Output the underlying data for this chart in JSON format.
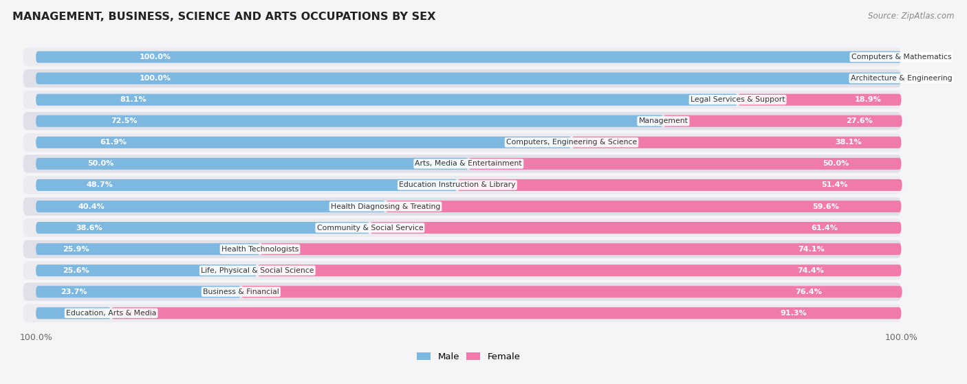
{
  "title": "MANAGEMENT, BUSINESS, SCIENCE AND ARTS OCCUPATIONS BY SEX",
  "source": "Source: ZipAtlas.com",
  "categories": [
    "Computers & Mathematics",
    "Architecture & Engineering",
    "Legal Services & Support",
    "Management",
    "Computers, Engineering & Science",
    "Arts, Media & Entertainment",
    "Education Instruction & Library",
    "Health Diagnosing & Treating",
    "Community & Social Service",
    "Health Technologists",
    "Life, Physical & Social Science",
    "Business & Financial",
    "Education, Arts & Media"
  ],
  "male_pct": [
    100.0,
    100.0,
    81.1,
    72.5,
    61.9,
    50.0,
    48.7,
    40.4,
    38.6,
    25.9,
    25.6,
    23.7,
    8.7
  ],
  "female_pct": [
    0.0,
    0.0,
    18.9,
    27.6,
    38.1,
    50.0,
    51.4,
    59.6,
    61.4,
    74.1,
    74.4,
    76.4,
    91.3
  ],
  "male_color": "#7db8e0",
  "female_color": "#f07baa",
  "row_bg_light": "#ebebf0",
  "row_bg_dark": "#e0e0e8",
  "fig_bg": "#f5f5f7",
  "figsize": [
    14.06,
    5.59
  ],
  "dpi": 100
}
